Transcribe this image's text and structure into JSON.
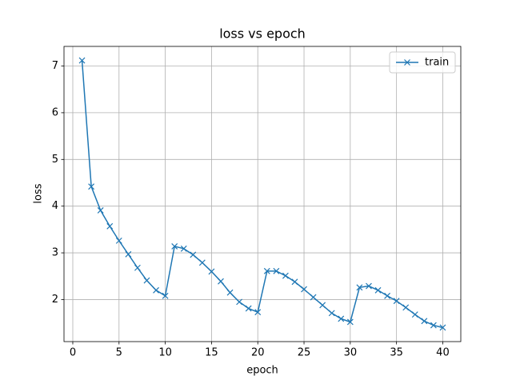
{
  "chart_data": {
    "type": "line",
    "title": "loss vs epoch",
    "xlabel": "epoch",
    "ylabel": "loss",
    "x": [
      1,
      2,
      3,
      4,
      5,
      6,
      7,
      8,
      9,
      10,
      11,
      12,
      13,
      14,
      15,
      16,
      17,
      18,
      19,
      20,
      21,
      22,
      23,
      24,
      25,
      26,
      27,
      28,
      29,
      30,
      31,
      32,
      33,
      34,
      35,
      36,
      37,
      38,
      39,
      40
    ],
    "series": [
      {
        "name": "train",
        "color": "#1f77b4",
        "marker": "x",
        "values": [
          7.12,
          4.42,
          3.91,
          3.57,
          3.26,
          2.97,
          2.68,
          2.41,
          2.2,
          2.08,
          3.14,
          3.09,
          2.96,
          2.79,
          2.6,
          2.39,
          2.15,
          1.95,
          1.81,
          1.73,
          2.61,
          2.61,
          2.51,
          2.38,
          2.22,
          2.05,
          1.88,
          1.71,
          1.59,
          1.52,
          2.26,
          2.29,
          2.2,
          2.08,
          1.97,
          1.83,
          1.68,
          1.54,
          1.45,
          1.4
        ]
      }
    ],
    "xlim": [
      -0.95,
      41.95
    ],
    "ylim": [
      1.1,
      7.42
    ],
    "xticks": [
      0,
      5,
      10,
      15,
      20,
      25,
      30,
      35,
      40
    ],
    "yticks": [
      2,
      3,
      4,
      5,
      6,
      7
    ],
    "grid": true,
    "legend": "upper right"
  }
}
